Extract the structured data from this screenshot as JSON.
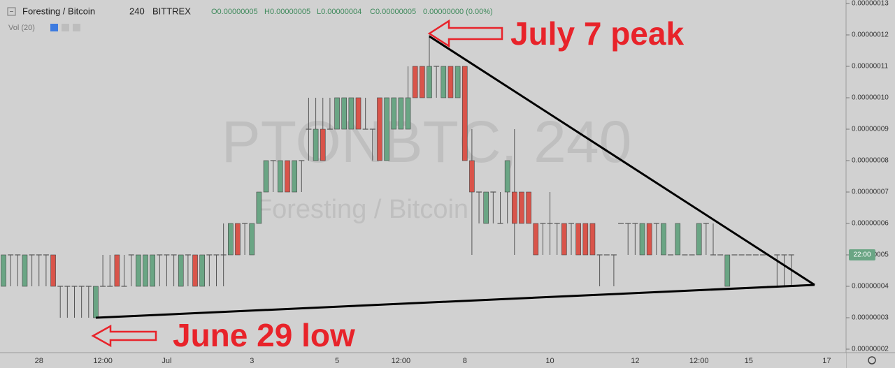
{
  "chart_data": {
    "type": "candlestick",
    "title": "Foresting / Bitcoin",
    "interval": "240",
    "exchange": "BITTREX",
    "ohlc_header": [
      "O0.00000005",
      "H0.00000005",
      "L0.00000004",
      "C0.00000005",
      "0.00000000 (0.00%)"
    ],
    "indicator": "Vol (20)",
    "watermark": "PTONBTC, 240",
    "watermark_subtitle": "Foresting / Bitcoin",
    "annotations": [
      "July 7 peak",
      "June 29 low"
    ],
    "countdown": "22:00",
    "up_color": "#6aa584",
    "down_color": "#d9544a",
    "doji_color": "#555555",
    "categories": [
      null,
      null,
      null,
      null,
      null,
      "28",
      null,
      null,
      null,
      null,
      null,
      null,
      null,
      null,
      "12:00",
      null,
      null,
      null,
      null,
      null,
      null,
      null,
      null,
      "Jul",
      null,
      null,
      null,
      null,
      null,
      null,
      null,
      null,
      null,
      null,
      null,
      "3",
      null,
      null,
      null,
      null,
      null,
      null,
      null,
      null,
      null,
      null,
      null,
      "5",
      null,
      null,
      null,
      null,
      null,
      null,
      null,
      null,
      "12:00",
      null,
      null,
      null,
      null,
      null,
      null,
      null,
      null,
      "8",
      null,
      null,
      null,
      null,
      null,
      null,
      null,
      null,
      null,
      null,
      null,
      "10",
      null,
      null,
      null,
      null,
      null,
      null,
      null,
      null,
      null,
      null,
      null,
      "12",
      null,
      null,
      null,
      null,
      null,
      null,
      null,
      null,
      "12:00",
      null,
      null,
      null,
      null,
      null,
      null,
      "15",
      null,
      null,
      null,
      null,
      null,
      null,
      null,
      null,
      null,
      null,
      "17"
    ],
    "open": [
      4e-08,
      5e-08,
      5e-08,
      4e-08,
      5e-08,
      5e-08,
      5e-08,
      5e-08,
      4e-08,
      4e-08,
      4e-08,
      4e-08,
      4e-08,
      3e-08,
      4e-08,
      4e-08,
      5e-08,
      4e-08,
      5e-08,
      4e-08,
      4e-08,
      4e-08,
      5e-08,
      5e-08,
      5e-08,
      4e-08,
      5e-08,
      5e-08,
      4e-08,
      5e-08,
      5e-08,
      5e-08,
      5e-08,
      6e-08,
      6e-08,
      5e-08,
      6e-08,
      7e-08,
      8e-08,
      7e-08,
      8e-08,
      7e-08,
      8e-08,
      9e-08,
      8e-08,
      9e-08,
      9e-08,
      9e-08,
      9e-08,
      9e-08,
      1e-07,
      9e-08,
      9e-08,
      1e-07,
      8e-08,
      9e-08,
      9e-08,
      9e-08,
      1.1e-07,
      1.1e-07,
      1e-07,
      1.1e-07,
      1e-07,
      1.1e-07,
      1e-07,
      1.1e-07,
      8e-08,
      7e-08,
      6e-08,
      7e-08,
      6e-08,
      7e-08,
      7e-08,
      7e-08,
      7e-08,
      6e-08,
      6e-08,
      6e-08,
      6e-08,
      6e-08,
      6e-08,
      6e-08,
      6e-08,
      6e-08,
      5e-08,
      5e-08,
      5e-08,
      6e-08,
      6e-08,
      6e-08,
      5e-08,
      6e-08,
      6e-08,
      5e-08,
      5e-08,
      5e-08,
      5e-08,
      5e-08,
      5e-08,
      6e-08,
      5e-08,
      5e-08,
      4e-08,
      5e-08,
      5e-08,
      5e-08,
      5e-08,
      5e-08,
      4e-08,
      5e-08,
      5e-08,
      5e-08,
      null,
      null,
      null,
      null,
      null
    ],
    "high": [
      5e-08,
      5e-08,
      5e-08,
      5e-08,
      5e-08,
      5e-08,
      5e-08,
      5e-08,
      4e-08,
      4e-08,
      4e-08,
      4e-08,
      4e-08,
      4e-08,
      5e-08,
      5e-08,
      5e-08,
      5e-08,
      5e-08,
      5e-08,
      5e-08,
      5e-08,
      5e-08,
      5e-08,
      5e-08,
      5e-08,
      5e-08,
      5e-08,
      5e-08,
      5e-08,
      5e-08,
      6e-08,
      6e-08,
      6e-08,
      6e-08,
      6e-08,
      7e-08,
      8e-08,
      8e-08,
      8e-08,
      8e-08,
      8e-08,
      8e-08,
      1e-07,
      1e-07,
      1e-07,
      1e-07,
      1e-07,
      1e-07,
      1e-07,
      1e-07,
      1e-07,
      9e-08,
      1e-07,
      1e-07,
      1e-07,
      1e-07,
      1.1e-07,
      1.1e-07,
      1.1e-07,
      1.2e-07,
      1.1e-07,
      1.1e-07,
      1.1e-07,
      1.1e-07,
      1.1e-07,
      9e-08,
      7e-08,
      7e-08,
      7e-08,
      7e-08,
      8e-08,
      9e-08,
      7e-08,
      7e-08,
      6e-08,
      6e-08,
      7e-08,
      6e-08,
      6e-08,
      6e-08,
      6e-08,
      6e-08,
      6e-08,
      5e-08,
      5e-08,
      5e-08,
      6e-08,
      6e-08,
      6e-08,
      6e-08,
      6e-08,
      6e-08,
      6e-08,
      5e-08,
      6e-08,
      5e-08,
      5e-08,
      6e-08,
      6e-08,
      6e-08,
      5e-08,
      5e-08,
      5e-08,
      5e-08,
      5e-08,
      5e-08,
      5e-08,
      4e-08,
      5e-08,
      5e-08,
      5e-08,
      null,
      null,
      null,
      null,
      null
    ],
    "low": [
      4e-08,
      4e-08,
      4e-08,
      4e-08,
      4e-08,
      4e-08,
      4e-08,
      4e-08,
      3e-08,
      3e-08,
      3e-08,
      3e-08,
      3e-08,
      3e-08,
      4e-08,
      4e-08,
      4e-08,
      4e-08,
      4e-08,
      4e-08,
      4e-08,
      4e-08,
      4e-08,
      4e-08,
      4e-08,
      4e-08,
      4e-08,
      4e-08,
      4e-08,
      4e-08,
      4e-08,
      4e-08,
      5e-08,
      5e-08,
      5e-08,
      5e-08,
      6e-08,
      7e-08,
      7e-08,
      7e-08,
      7e-08,
      7e-08,
      7e-08,
      8e-08,
      8e-08,
      8e-08,
      9e-08,
      9e-08,
      9e-08,
      9e-08,
      9e-08,
      9e-08,
      8e-08,
      8e-08,
      8e-08,
      9e-08,
      9e-08,
      9e-08,
      1e-07,
      1e-07,
      1e-07,
      1e-07,
      1e-07,
      1e-07,
      1e-07,
      8e-08,
      5e-08,
      6e-08,
      6e-08,
      6e-08,
      6e-08,
      6e-08,
      5e-08,
      6e-08,
      6e-08,
      5e-08,
      5e-08,
      5e-08,
      5e-08,
      5e-08,
      5e-08,
      5e-08,
      5e-08,
      5e-08,
      4e-08,
      5e-08,
      4e-08,
      6e-08,
      5e-08,
      5e-08,
      5e-08,
      5e-08,
      5e-08,
      5e-08,
      5e-08,
      5e-08,
      5e-08,
      5e-08,
      5e-08,
      5e-08,
      5e-08,
      5e-08,
      4e-08,
      5e-08,
      5e-08,
      5e-08,
      5e-08,
      5e-08,
      4e-08,
      4e-08,
      4e-08,
      4e-08,
      null,
      null,
      null,
      null,
      null
    ],
    "close": [
      5e-08,
      5e-08,
      5e-08,
      5e-08,
      5e-08,
      5e-08,
      5e-08,
      4e-08,
      4e-08,
      4e-08,
      4e-08,
      4e-08,
      4e-08,
      4e-08,
      4e-08,
      4e-08,
      4e-08,
      4e-08,
      5e-08,
      5e-08,
      5e-08,
      5e-08,
      5e-08,
      5e-08,
      5e-08,
      5e-08,
      5e-08,
      4e-08,
      5e-08,
      5e-08,
      5e-08,
      5e-08,
      6e-08,
      5e-08,
      6e-08,
      6e-08,
      7e-08,
      8e-08,
      8e-08,
      8e-08,
      7e-08,
      8e-08,
      8e-08,
      9e-08,
      9e-08,
      8e-08,
      9e-08,
      1e-07,
      1e-07,
      1e-07,
      9e-08,
      9e-08,
      9e-08,
      8e-08,
      1e-07,
      1e-07,
      1e-07,
      1e-07,
      1e-07,
      1e-07,
      1.1e-07,
      1.1e-07,
      1.1e-07,
      1e-07,
      1.1e-07,
      8e-08,
      7e-08,
      7e-08,
      7e-08,
      7e-08,
      6e-08,
      8e-08,
      6e-08,
      6e-08,
      6e-08,
      5e-08,
      6e-08,
      6e-08,
      6e-08,
      5e-08,
      6e-08,
      5e-08,
      5e-08,
      5e-08,
      5e-08,
      5e-08,
      5e-08,
      6e-08,
      6e-08,
      6e-08,
      6e-08,
      5e-08,
      6e-08,
      6e-08,
      5e-08,
      6e-08,
      5e-08,
      5e-08,
      6e-08,
      6e-08,
      5e-08,
      5e-08,
      5e-08,
      5e-08,
      5e-08,
      5e-08,
      5e-08,
      5e-08,
      4e-08,
      5e-08,
      5e-08,
      5e-08,
      null,
      null,
      null,
      null,
      null
    ],
    "ylim": [
      1.889e-08,
      1.3111e-07
    ],
    "yticks": [
      {
        "value": 2e-08,
        "label": "0.00000002"
      },
      {
        "value": 3e-08,
        "label": "0.00000003"
      },
      {
        "value": 4e-08,
        "label": "0.00000004"
      },
      {
        "value": 5e-08,
        "label": "0.00000005"
      },
      {
        "value": 6e-08,
        "label": "0.00000006"
      },
      {
        "value": 7e-08,
        "label": "0.00000007"
      },
      {
        "value": 8e-08,
        "label": "0.00000008"
      },
      {
        "value": 9e-08,
        "label": "0.00000009"
      },
      {
        "value": 1e-07,
        "label": "0.00000010"
      },
      {
        "value": 1.1e-07,
        "label": "0.00000011"
      },
      {
        "value": 1.2e-07,
        "label": "0.00000012"
      },
      {
        "value": 1.3e-07,
        "label": "0.00000013"
      }
    ]
  }
}
